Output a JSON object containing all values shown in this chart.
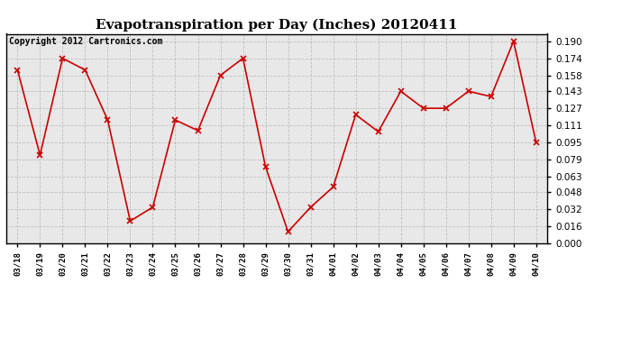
{
  "title": "Evapotranspiration per Day (Inches) 20120411",
  "copyright_text": "Copyright 2012 Cartronics.com",
  "x_labels": [
    "03/18",
    "03/19",
    "03/20",
    "03/21",
    "03/22",
    "03/23",
    "03/24",
    "03/25",
    "03/26",
    "03/27",
    "03/28",
    "03/29",
    "03/30",
    "03/31",
    "04/01",
    "04/02",
    "04/03",
    "04/04",
    "04/05",
    "04/06",
    "04/07",
    "04/08",
    "04/09",
    "04/10"
  ],
  "y_values": [
    0.163,
    0.083,
    0.174,
    0.163,
    0.116,
    0.021,
    0.034,
    0.116,
    0.106,
    0.158,
    0.174,
    0.072,
    0.011,
    0.034,
    0.053,
    0.121,
    0.105,
    0.143,
    0.127,
    0.127,
    0.143,
    0.138,
    0.19,
    0.095
  ],
  "line_color": "#cc0000",
  "marker": "x",
  "marker_color": "#cc0000",
  "grid_color": "#c0c0c0",
  "bg_color": "#ffffff",
  "plot_bg_color": "#e8e8e8",
  "y_ticks": [
    0.0,
    0.016,
    0.032,
    0.048,
    0.063,
    0.079,
    0.095,
    0.111,
    0.127,
    0.143,
    0.158,
    0.174,
    0.19
  ],
  "ylim": [
    0.0,
    0.197
  ],
  "title_fontsize": 11,
  "copyright_fontsize": 7
}
